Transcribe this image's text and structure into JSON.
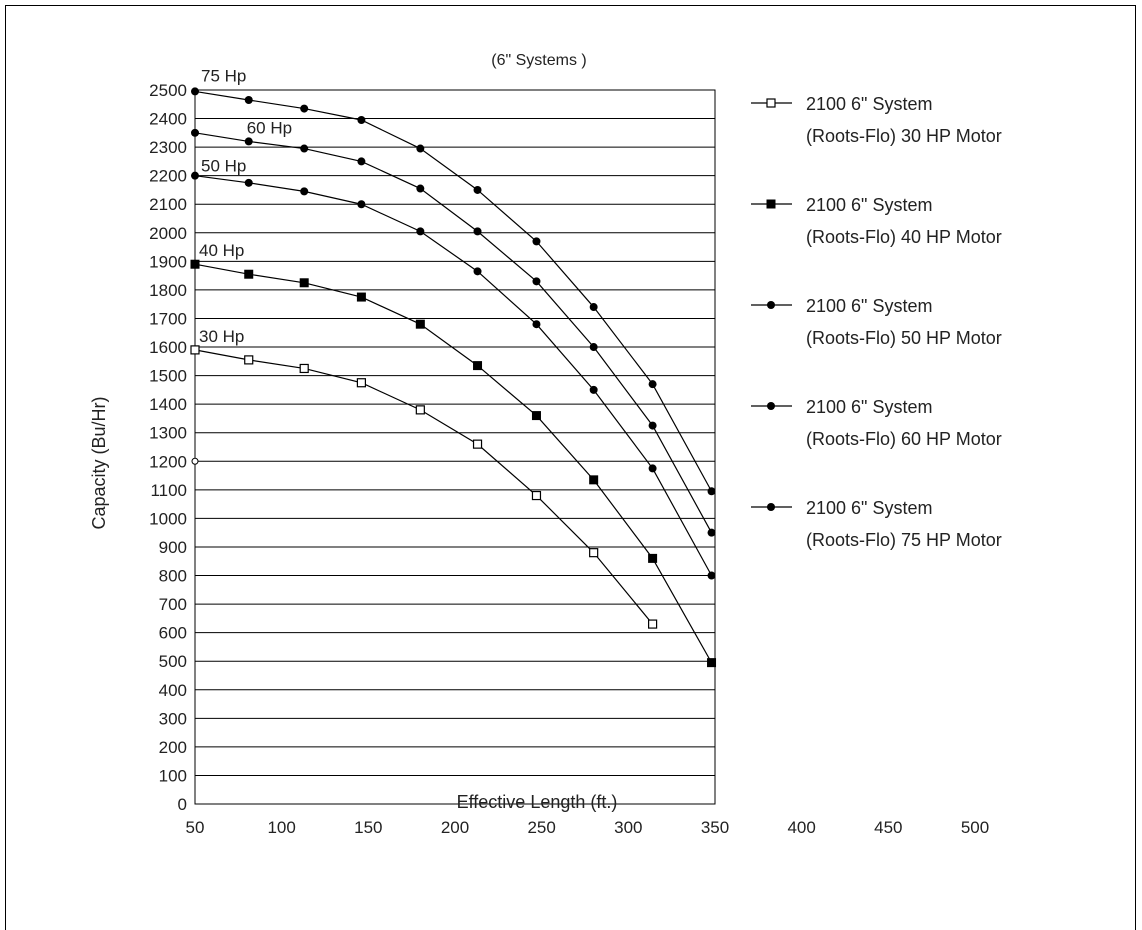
{
  "chart_data": {
    "type": "line",
    "title": "(6\" Systems )",
    "xlabel": "Effective Length (ft.)",
    "ylabel": "Capacity  (Bu/Hr)",
    "xlim": [
      50,
      500
    ],
    "ylim": [
      0,
      2500
    ],
    "x_ticks": [
      "50",
      "100",
      "150",
      "200",
      "250",
      "300",
      "350",
      "400",
      "450",
      "500"
    ],
    "y_ticks": [
      "0",
      "100",
      "200",
      "300",
      "400",
      "500",
      "600",
      "700",
      "800",
      "900",
      "1000",
      "1100",
      "1200",
      "1300",
      "1400",
      "1500",
      "1600",
      "1700",
      "1800",
      "1900",
      "2000",
      "2100",
      "2200",
      "2300",
      "2400",
      "2500"
    ],
    "grid": "horizontal",
    "legend_position": "right",
    "series": [
      {
        "name": "2100 6\" System (Roots-Flo) 30 HP Motor",
        "legend_lines": [
          "2100 6\" System",
          "(Roots-Flo) 30 HP Motor"
        ],
        "curve_label": "30 Hp",
        "marker": "open-square",
        "x": [
          50,
          81,
          113,
          146,
          180,
          213,
          247,
          280,
          314
        ],
        "y": [
          1590,
          1555,
          1525,
          1475,
          1380,
          1260,
          1080,
          880,
          630
        ]
      },
      {
        "name": "2100 6\" System (Roots-Flo) 40 HP Motor",
        "legend_lines": [
          "2100 6\" System",
          "(Roots-Flo) 40 HP Motor"
        ],
        "curve_label": "40 Hp",
        "marker": "filled-square",
        "x": [
          50,
          81,
          113,
          146,
          180,
          213,
          247,
          280,
          314,
          348
        ],
        "y": [
          1890,
          1855,
          1825,
          1775,
          1680,
          1535,
          1360,
          1135,
          860,
          495
        ]
      },
      {
        "name": "2100 6\" System (Roots-Flo) 50 HP Motor",
        "legend_lines": [
          "2100 6\" System",
          "(Roots-Flo) 50 HP Motor"
        ],
        "curve_label": "50 Hp",
        "marker": "filled-circle",
        "x": [
          50,
          81,
          113,
          146,
          180,
          213,
          247,
          280,
          314,
          348
        ],
        "y": [
          2200,
          2175,
          2145,
          2100,
          2005,
          1865,
          1680,
          1450,
          1175,
          800
        ]
      },
      {
        "name": "2100 6\" System (Roots-Flo) 60 HP Motor",
        "legend_lines": [
          "2100 6\" System",
          "(Roots-Flo) 60 HP Motor"
        ],
        "curve_label": "60 Hp",
        "marker": "filled-circle",
        "x": [
          50,
          81,
          113,
          146,
          180,
          213,
          247,
          280,
          314,
          348
        ],
        "y": [
          2350,
          2320,
          2295,
          2250,
          2155,
          2005,
          1830,
          1600,
          1325,
          950
        ]
      },
      {
        "name": "2100 6\" System (Roots-Flo) 75 HP Motor",
        "legend_lines": [
          "2100 6\" System",
          "(Roots-Flo) 75 HP Motor"
        ],
        "curve_label": "75 Hp",
        "marker": "filled-circle",
        "x": [
          50,
          81,
          113,
          146,
          180,
          213,
          247,
          280,
          314,
          348
        ],
        "y": [
          2495,
          2465,
          2435,
          2395,
          2295,
          2150,
          1970,
          1740,
          1470,
          1095
        ]
      }
    ],
    "annotations": [
      {
        "text": "open circle at x=50",
        "x": 50,
        "y": 1200,
        "marker": "open-circle"
      }
    ]
  }
}
